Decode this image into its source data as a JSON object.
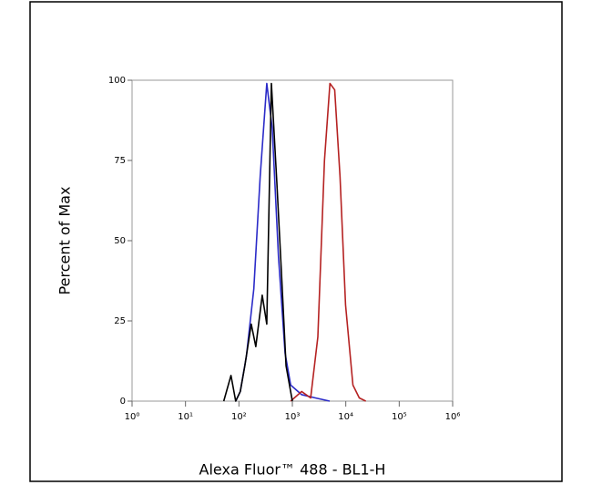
{
  "chart_data": {
    "type": "line",
    "xlabel": "Alexa Fluor™ 488 - BL1-H",
    "ylabel": "Percent of Max",
    "xscale": "log",
    "xlim": [
      1,
      1000000
    ],
    "xticks": [
      {
        "value": 1,
        "label": "10⁰"
      },
      {
        "value": 10,
        "label": "10¹"
      },
      {
        "value": 100,
        "label": "10²"
      },
      {
        "value": 1000,
        "label": "10³"
      },
      {
        "value": 10000,
        "label": "10⁴"
      },
      {
        "value": 100000,
        "label": "10⁵"
      },
      {
        "value": 1000000,
        "label": "10⁶"
      }
    ],
    "ylim": [
      0,
      100
    ],
    "yticks": [
      0,
      25,
      50,
      75,
      100
    ],
    "series": [
      {
        "color": "#2b2bc8",
        "x": [
          87,
          106,
          138,
          190,
          250,
          332,
          420,
          550,
          730,
          930,
          1500,
          2700,
          5000
        ],
        "values": [
          0,
          3,
          14,
          35,
          70,
          99,
          85,
          45,
          15,
          5,
          2,
          1,
          0
        ]
      },
      {
        "color": "#b52222",
        "x": [
          930,
          1490,
          2200,
          3000,
          3990,
          5050,
          6200,
          7800,
          9900,
          13600,
          17900,
          23700
        ],
        "values": [
          0,
          3,
          1,
          20,
          75,
          99,
          97,
          70,
          30,
          5,
          1,
          0
        ]
      },
      {
        "color": "#000000",
        "x": [
          52,
          71,
          87,
          106,
          129,
          170,
          207,
          273,
          332,
          405,
          513,
          625,
          762,
          1000
        ],
        "values": [
          0,
          8,
          0,
          3,
          11,
          24,
          17,
          33,
          24,
          99,
          68,
          40,
          11,
          0
        ]
      }
    ]
  }
}
